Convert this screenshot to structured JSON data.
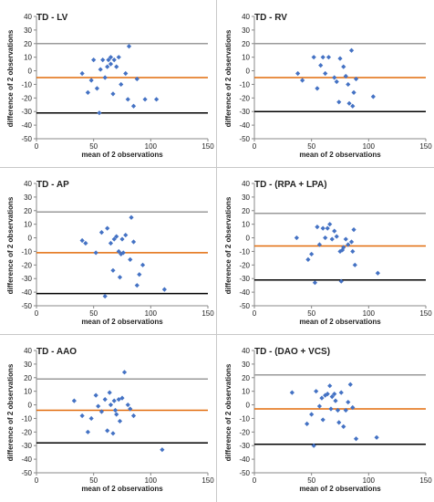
{
  "colors": {
    "upper_limit": "#9a9a9a",
    "mean_line": "#e26b0a",
    "lower_limit": "#000000",
    "points": "#4472c4"
  },
  "chart_data": [
    {
      "type": "scatter",
      "title": "TD - LV",
      "xlabel": "mean of 2 observations",
      "ylabel": "difference of 2 observations",
      "xlim": [
        0,
        150
      ],
      "ylim": [
        -50,
        40
      ],
      "xticks": [
        0,
        50,
        100,
        150
      ],
      "yticks": [
        40,
        30,
        20,
        10,
        0,
        -10,
        -20,
        -30,
        -40,
        -50
      ],
      "lines": {
        "upper": 20,
        "mean": -5,
        "lower": -31
      },
      "points": [
        [
          40,
          -2
        ],
        [
          45,
          -16
        ],
        [
          48,
          -7
        ],
        [
          50,
          8
        ],
        [
          53,
          -13
        ],
        [
          55,
          -31
        ],
        [
          56,
          1
        ],
        [
          58,
          8
        ],
        [
          60,
          -5
        ],
        [
          62,
          3
        ],
        [
          63,
          8
        ],
        [
          65,
          10
        ],
        [
          65,
          5
        ],
        [
          67,
          -17
        ],
        [
          68,
          8
        ],
        [
          70,
          3
        ],
        [
          72,
          10
        ],
        [
          74,
          -10
        ],
        [
          78,
          -2
        ],
        [
          80,
          -21
        ],
        [
          81,
          18
        ],
        [
          85,
          -26
        ],
        [
          88,
          -6
        ],
        [
          95,
          -21
        ],
        [
          105,
          -21
        ]
      ]
    },
    {
      "type": "scatter",
      "title": "TD - RV",
      "xlabel": "mean of 2 observations",
      "ylabel": "difference of 2 observations",
      "xlim": [
        0,
        150
      ],
      "ylim": [
        -50,
        40
      ],
      "xticks": [
        0,
        50,
        100,
        150
      ],
      "yticks": [
        40,
        30,
        20,
        10,
        0,
        -10,
        -20,
        -30,
        -40,
        -50
      ],
      "lines": {
        "upper": 20,
        "mean": -5,
        "lower": -30
      },
      "points": [
        [
          38,
          -2
        ],
        [
          42,
          -7
        ],
        [
          52,
          10
        ],
        [
          55,
          -13
        ],
        [
          58,
          4
        ],
        [
          60,
          10
        ],
        [
          62,
          -2
        ],
        [
          65,
          10
        ],
        [
          70,
          -5
        ],
        [
          72,
          -8
        ],
        [
          74,
          -23
        ],
        [
          75,
          9
        ],
        [
          78,
          3
        ],
        [
          80,
          -4
        ],
        [
          82,
          -10
        ],
        [
          83,
          -24
        ],
        [
          85,
          15
        ],
        [
          86,
          -26
        ],
        [
          87,
          -16
        ],
        [
          89,
          -6
        ],
        [
          104,
          -19
        ]
      ]
    },
    {
      "type": "scatter",
      "title": "TD - AP",
      "xlabel": "mean of 2 observations",
      "ylabel": "difference of 2 observations",
      "xlim": [
        0,
        150
      ],
      "ylim": [
        -50,
        40
      ],
      "xticks": [
        0,
        50,
        100,
        150
      ],
      "yticks": [
        40,
        30,
        20,
        10,
        0,
        -10,
        -20,
        -30,
        -40,
        -50
      ],
      "lines": {
        "upper": 19,
        "mean": -11,
        "lower": -41
      },
      "points": [
        [
          40,
          -2
        ],
        [
          43,
          -4
        ],
        [
          52,
          -11
        ],
        [
          57,
          4
        ],
        [
          60,
          -43
        ],
        [
          62,
          7
        ],
        [
          65,
          -4
        ],
        [
          67,
          -24
        ],
        [
          68,
          -1
        ],
        [
          70,
          1
        ],
        [
          72,
          -10
        ],
        [
          73,
          -29
        ],
        [
          74,
          -12
        ],
        [
          75,
          -1
        ],
        [
          76,
          -11
        ],
        [
          78,
          2
        ],
        [
          82,
          -16
        ],
        [
          83,
          15
        ],
        [
          85,
          -3
        ],
        [
          88,
          -35
        ],
        [
          90,
          -27
        ],
        [
          93,
          -20
        ],
        [
          112,
          -38
        ]
      ]
    },
    {
      "type": "scatter",
      "title": "TD - (RPA + LPA)",
      "xlabel": "mean of 2 observations",
      "ylabel": "difference of 2 observations",
      "xlim": [
        0,
        150
      ],
      "ylim": [
        -50,
        40
      ],
      "xticks": [
        0,
        50,
        100,
        150
      ],
      "yticks": [
        40,
        30,
        20,
        10,
        0,
        -10,
        -20,
        -30,
        -40,
        -50
      ],
      "lines": {
        "upper": 18,
        "mean": -6,
        "lower": -31
      },
      "points": [
        [
          37,
          0
        ],
        [
          47,
          -16
        ],
        [
          50,
          -12
        ],
        [
          53,
          -33
        ],
        [
          55,
          8
        ],
        [
          57,
          -5
        ],
        [
          60,
          7
        ],
        [
          62,
          0
        ],
        [
          64,
          7
        ],
        [
          66,
          10
        ],
        [
          68,
          -1
        ],
        [
          70,
          5
        ],
        [
          72,
          1
        ],
        [
          75,
          -10
        ],
        [
          76,
          -32
        ],
        [
          77,
          -9
        ],
        [
          78,
          -7
        ],
        [
          80,
          -1
        ],
        [
          82,
          -5
        ],
        [
          85,
          -3
        ],
        [
          86,
          -10
        ],
        [
          87,
          6
        ],
        [
          88,
          -20
        ],
        [
          108,
          -26
        ]
      ]
    },
    {
      "type": "scatter",
      "title": "TD - AAO",
      "xlabel": "mean of 2 observations",
      "ylabel": "difference of 2 observations",
      "xlim": [
        0,
        150
      ],
      "ylim": [
        -50,
        40
      ],
      "xticks": [
        0,
        50,
        100,
        150
      ],
      "yticks": [
        40,
        30,
        20,
        10,
        0,
        -10,
        -20,
        -30,
        -40,
        -50
      ],
      "lines": {
        "upper": 19,
        "mean": -4,
        "lower": -28
      },
      "points": [
        [
          33,
          3
        ],
        [
          40,
          -8
        ],
        [
          45,
          -20
        ],
        [
          48,
          -10
        ],
        [
          52,
          7
        ],
        [
          54,
          -1
        ],
        [
          57,
          -5
        ],
        [
          60,
          4
        ],
        [
          62,
          -19
        ],
        [
          64,
          9
        ],
        [
          65,
          0
        ],
        [
          67,
          -21
        ],
        [
          68,
          3
        ],
        [
          69,
          -4
        ],
        [
          70,
          -7
        ],
        [
          72,
          4
        ],
        [
          73,
          -12
        ],
        [
          75,
          5
        ],
        [
          77,
          24
        ],
        [
          80,
          0
        ],
        [
          82,
          -3
        ],
        [
          85,
          -8
        ],
        [
          110,
          -33
        ]
      ]
    },
    {
      "type": "scatter",
      "title": "TD - (DAO + VCS)",
      "xlabel": "mean of 2 observations",
      "ylabel": "difference of 2 observations",
      "xlim": [
        0,
        150
      ],
      "ylim": [
        -50,
        40
      ],
      "xticks": [
        0,
        50,
        100,
        150
      ],
      "yticks": [
        40,
        30,
        20,
        10,
        0,
        -10,
        -20,
        -30,
        -40,
        -50
      ],
      "lines": {
        "upper": 22,
        "mean": -3,
        "lower": -29
      },
      "points": [
        [
          33,
          9
        ],
        [
          46,
          -14
        ],
        [
          50,
          -7
        ],
        [
          52,
          -30
        ],
        [
          54,
          10
        ],
        [
          57,
          -1
        ],
        [
          59,
          5
        ],
        [
          60,
          -11
        ],
        [
          62,
          7
        ],
        [
          64,
          8
        ],
        [
          66,
          14
        ],
        [
          67,
          -3
        ],
        [
          68,
          6
        ],
        [
          70,
          8
        ],
        [
          71,
          3
        ],
        [
          73,
          -4
        ],
        [
          74,
          -13
        ],
        [
          76,
          9
        ],
        [
          78,
          -16
        ],
        [
          80,
          -4
        ],
        [
          82,
          2
        ],
        [
          84,
          15
        ],
        [
          86,
          -2
        ],
        [
          89,
          -25
        ],
        [
          107,
          -24
        ]
      ]
    }
  ]
}
